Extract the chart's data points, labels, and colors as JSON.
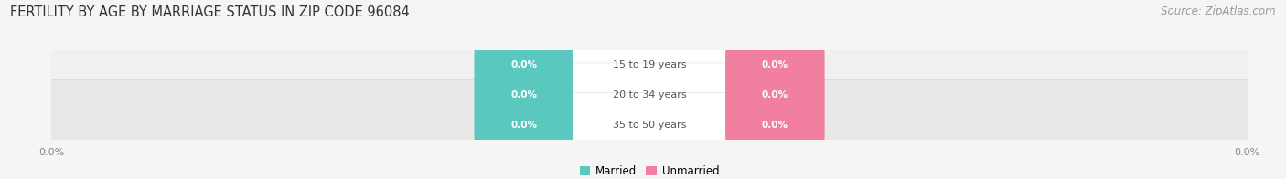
{
  "title": "FERTILITY BY AGE BY MARRIAGE STATUS IN ZIP CODE 96084",
  "source": "Source: ZipAtlas.com",
  "categories": [
    "15 to 19 years",
    "20 to 34 years",
    "35 to 50 years"
  ],
  "married_values": [
    0.0,
    0.0,
    0.0
  ],
  "unmarried_values": [
    0.0,
    0.0,
    0.0
  ],
  "married_color": "#5bc8c0",
  "unmarried_color": "#f07fa0",
  "bar_bg_color": "#e8e8e8",
  "bar_bg_color2": "#f0f0f0",
  "background_color": "#f5f5f5",
  "title_fontsize": 10.5,
  "source_fontsize": 8.5,
  "label_fontsize": 8,
  "badge_fontsize": 7.5,
  "axis_fontsize": 8,
  "legend_fontsize": 8.5
}
